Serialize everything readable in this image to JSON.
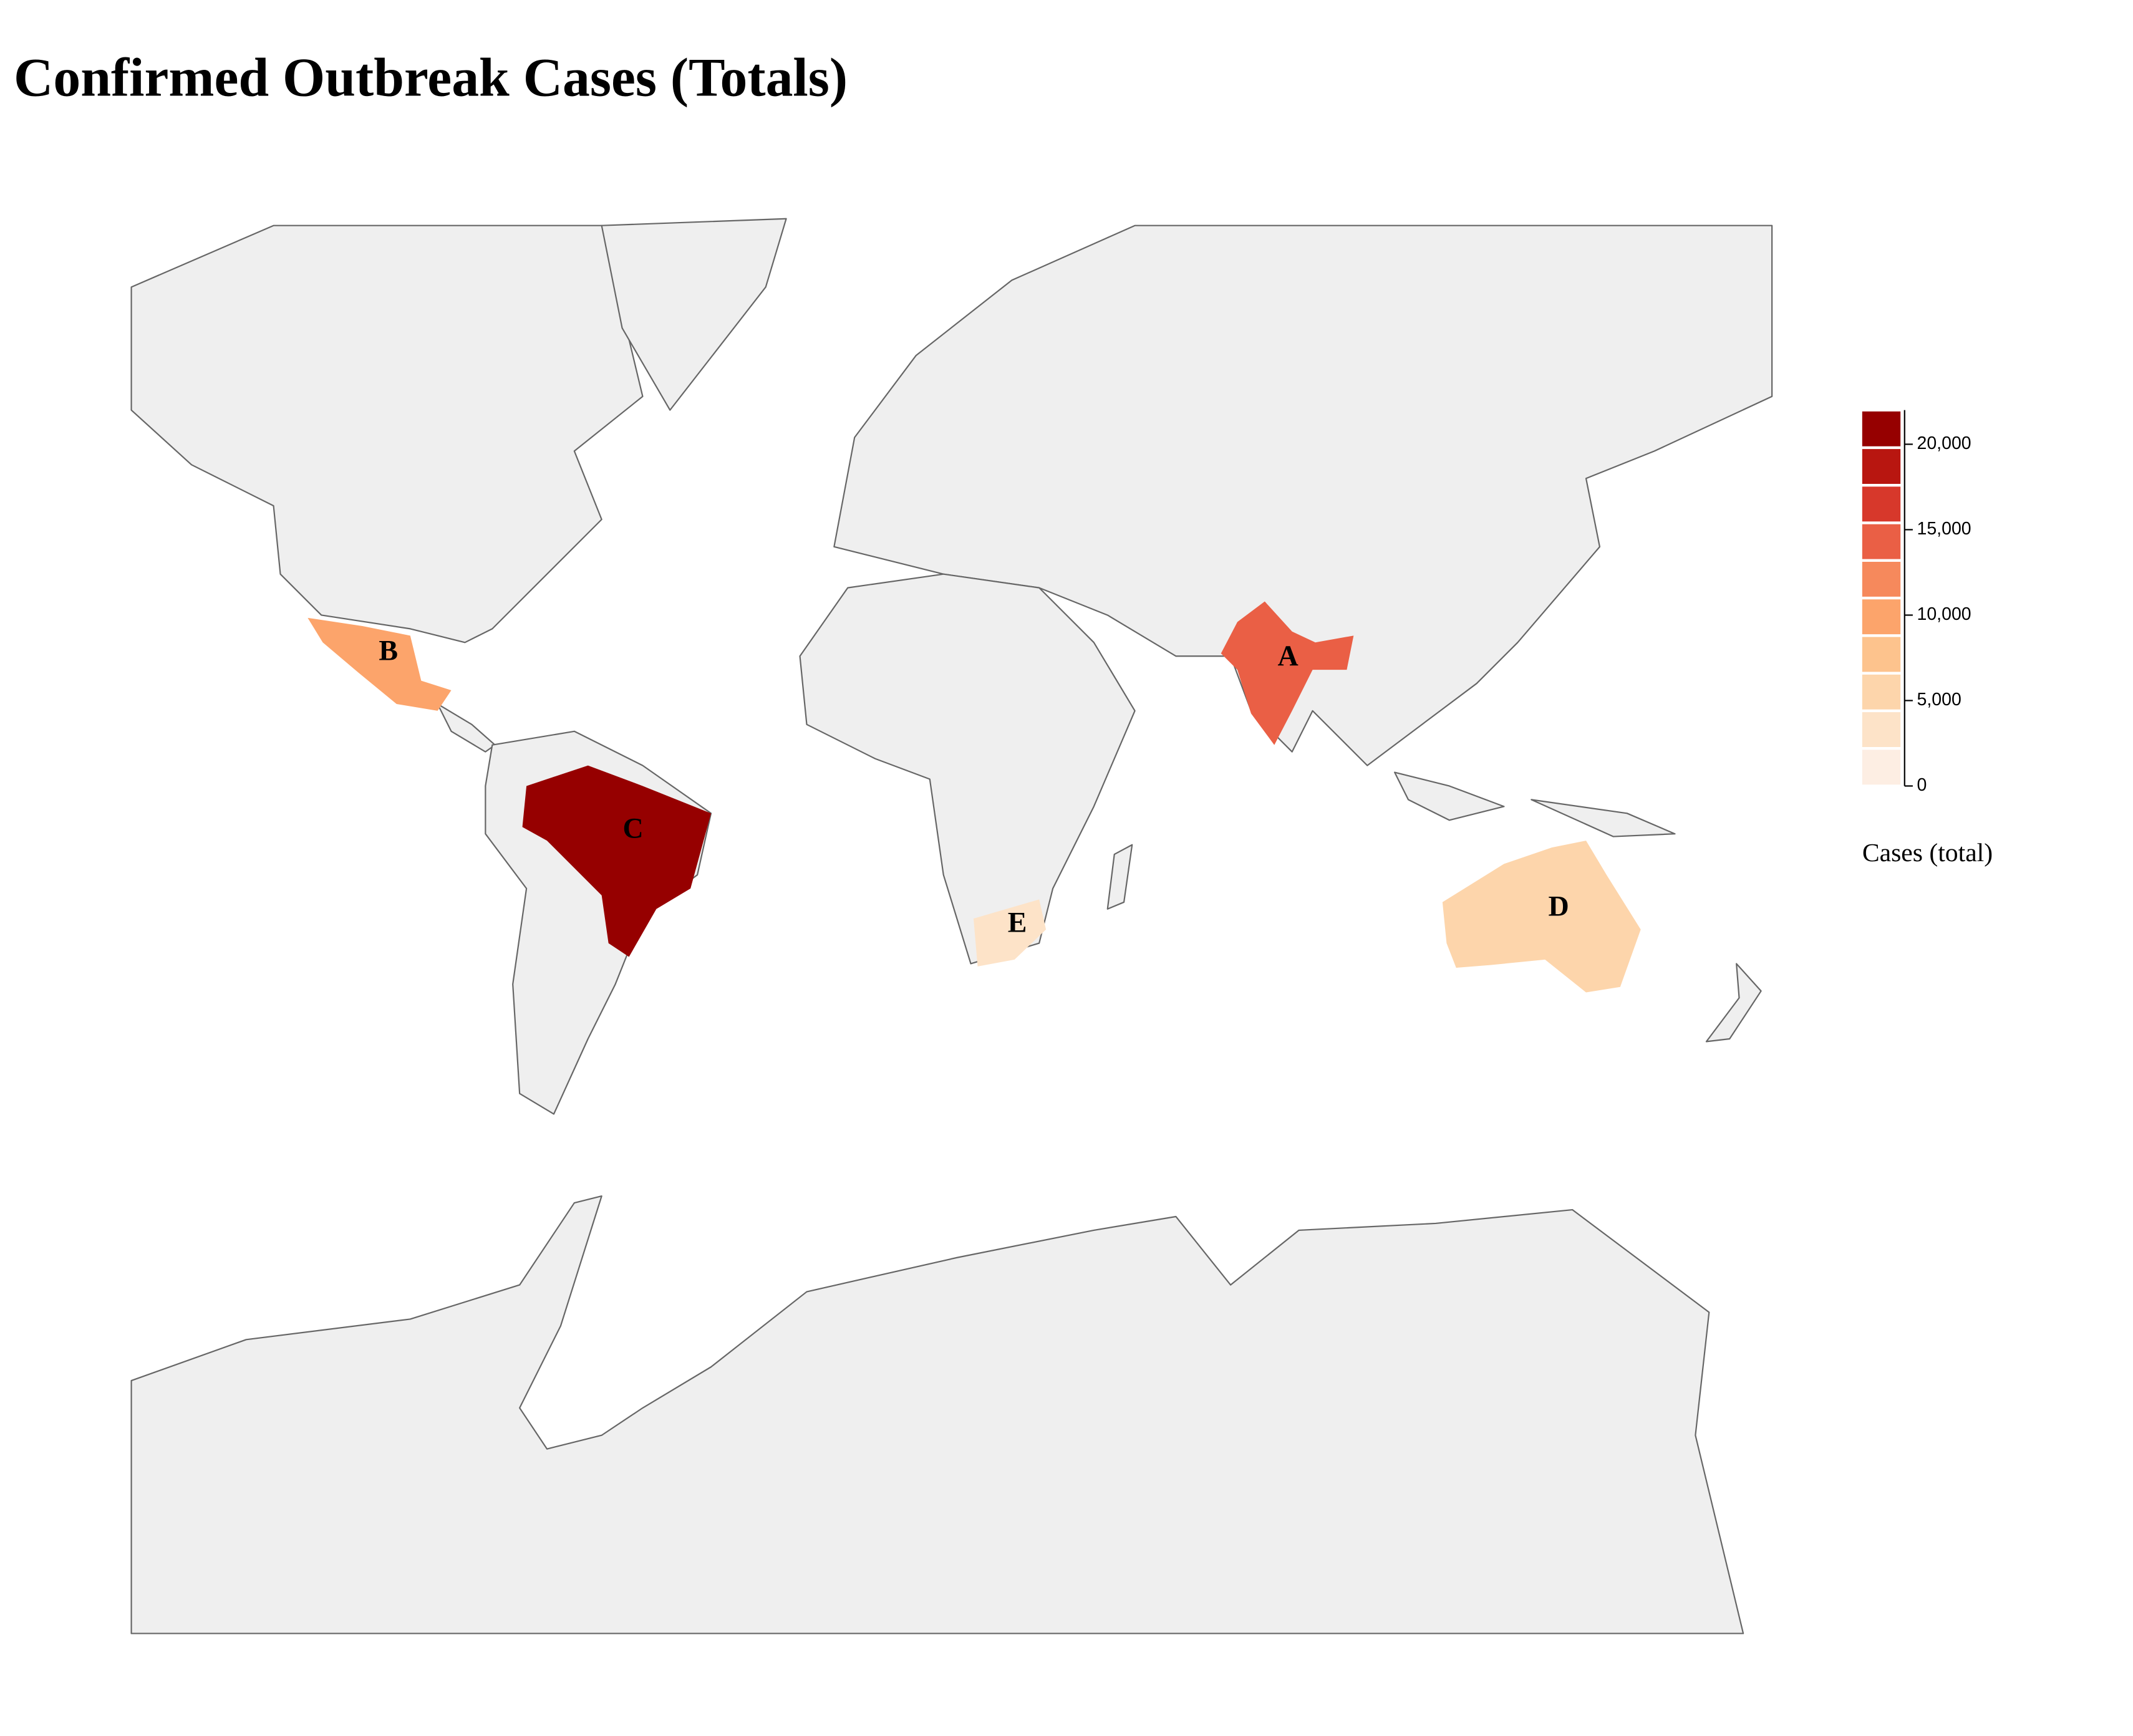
{
  "chart_data": {
    "type": "choropleth",
    "title": "Confirmed Outbreak Cases (Totals)",
    "regions": [
      {
        "label": "A",
        "value": 14000
      },
      {
        "label": "B",
        "value": 10000
      },
      {
        "label": "C",
        "value": 21000
      },
      {
        "label": "D",
        "value": 6000
      },
      {
        "label": "E",
        "value": 4000
      }
    ],
    "legend": {
      "title": "Cases (total)",
      "lim": [
        0,
        22000
      ],
      "ticks": [
        0,
        {
          "value": 5000,
          "label": "5,000"
        },
        {
          "value": 10000,
          "label": "10,000"
        },
        {
          "value": 15000,
          "label": "15,000"
        },
        {
          "value": 20000,
          "label": "20,000"
        }
      ],
      "colors": [
        "#fdeee3",
        "#fde3c8",
        "#fdd5ab",
        "#fdc38d",
        "#fca46b",
        "#f6895c",
        "#ea5f45",
        "#d7382b",
        "#b81610",
        "#960000"
      ]
    }
  }
}
